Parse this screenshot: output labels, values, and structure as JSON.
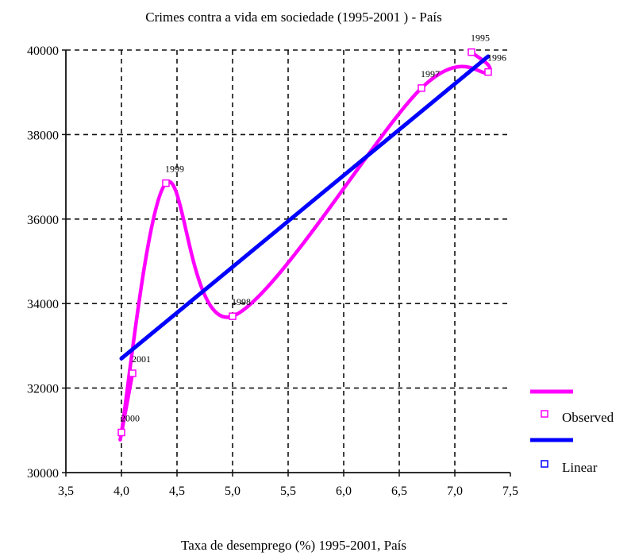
{
  "chart_data": {
    "type": "line",
    "title": "Crimes contra a vida em sociedade (1995-2001 ) - País",
    "xlabel": "Taxa de desemprego (%) 1995-2001, País",
    "ylabel": "",
    "xlim": [
      3.5,
      7.5
    ],
    "ylim": [
      30000,
      40000
    ],
    "x_ticks": [
      "3,5",
      "4,0",
      "4,5",
      "5,0",
      "5,5",
      "6,0",
      "6,5",
      "7,0",
      "7,5"
    ],
    "x_tick_values": [
      3.5,
      4.0,
      4.5,
      5.0,
      5.5,
      6.0,
      6.5,
      7.0,
      7.5
    ],
    "y_ticks": [
      "30000",
      "32000",
      "34000",
      "36000",
      "38000",
      "40000"
    ],
    "y_tick_values": [
      30000,
      32000,
      34000,
      36000,
      38000,
      40000
    ],
    "grid": true,
    "legend_position": "right",
    "series": [
      {
        "name": "Observed",
        "color": "#ff00ff",
        "marker": "open-square",
        "points": [
          {
            "label": "1995",
            "x": 7.15,
            "y": 39950
          },
          {
            "label": "1996",
            "x": 7.3,
            "y": 39480
          },
          {
            "label": "1997",
            "x": 6.7,
            "y": 39100
          },
          {
            "label": "1998",
            "x": 5.0,
            "y": 33700
          },
          {
            "label": "1999",
            "x": 4.4,
            "y": 36850
          },
          {
            "label": "2000",
            "x": 4.0,
            "y": 30950
          },
          {
            "label": "2001",
            "x": 4.1,
            "y": 32350
          }
        ]
      },
      {
        "name": "Linear",
        "color": "#0000ff",
        "marker": "open-square",
        "line": [
          [
            4.0,
            32700
          ],
          [
            7.3,
            39850
          ]
        ]
      }
    ]
  }
}
